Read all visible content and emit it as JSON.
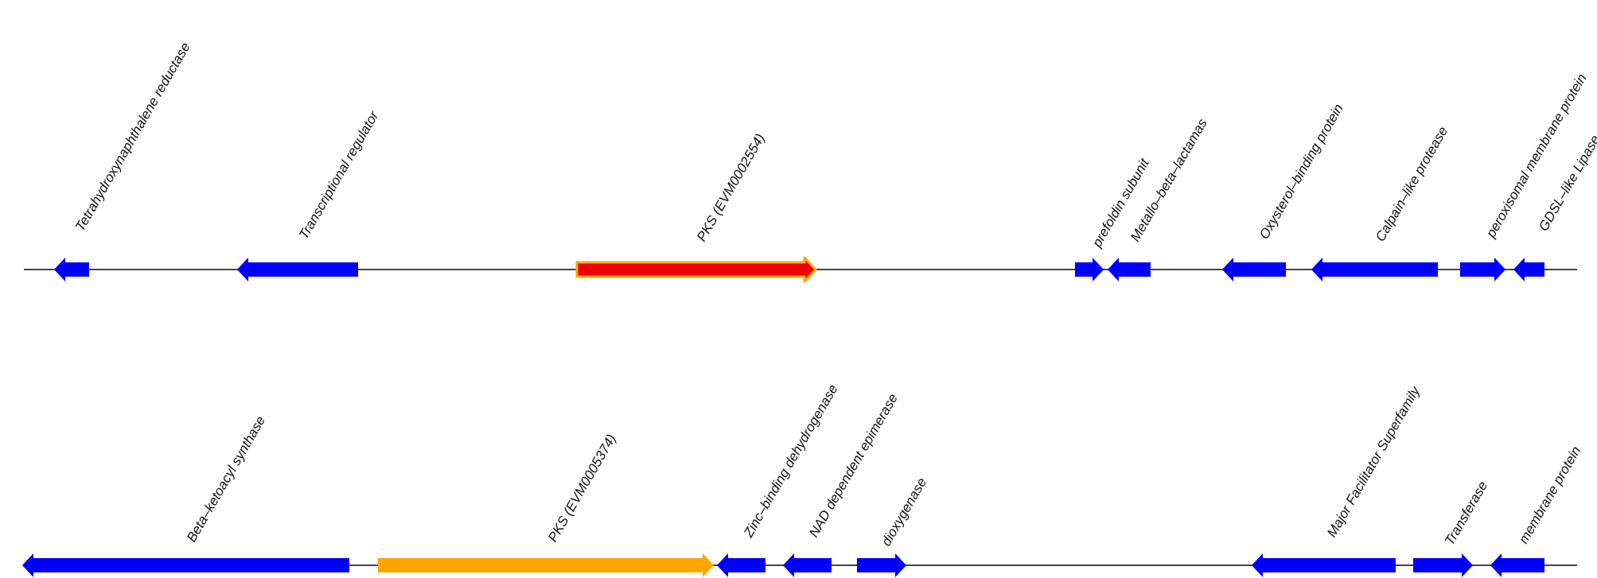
{
  "colors": {
    "backbone": "#444444",
    "gene": "#0000ff",
    "pks_highlight_fill": "#ee0000",
    "pks_highlight_stroke": "#ffaa00",
    "pks_alt": "#ffa500"
  },
  "clusters": [
    {
      "id": "cluster-1",
      "genes": [
        {
          "label": "Tetrahydroxynaphthalene reductase",
          "strand": "-",
          "style": "normal"
        },
        {
          "label": "Transcriptional regulator",
          "strand": "-",
          "style": "normal"
        },
        {
          "label": "PKS (EVM0002554)",
          "strand": "+",
          "style": "highlight"
        },
        {
          "label": "prefoldin subunit",
          "strand": "+",
          "style": "normal"
        },
        {
          "label": "Metallo–beta–lactamas",
          "strand": "-",
          "style": "normal"
        },
        {
          "label": "Oxysterol–binding protein",
          "strand": "-",
          "style": "normal"
        },
        {
          "label": "Calpain–like protease",
          "strand": "-",
          "style": "normal"
        },
        {
          "label": "peroxisomal membrane protein",
          "strand": "+",
          "style": "normal"
        },
        {
          "label": "GDSL–like Lipase",
          "strand": "-",
          "style": "normal"
        }
      ]
    },
    {
      "id": "cluster-2",
      "genes": [
        {
          "label": "Beta–ketoacyl synthase",
          "strand": "-",
          "style": "normal"
        },
        {
          "label": "PKS (EVM0005374)",
          "strand": "+",
          "style": "alt"
        },
        {
          "label": "Zinc–binding dehydrogenase",
          "strand": "-",
          "style": "normal"
        },
        {
          "label": "NAD dependent epimerase",
          "strand": "-",
          "style": "normal"
        },
        {
          "label": "dioxygenase",
          "strand": "+",
          "style": "normal"
        },
        {
          "label": "Major Facilitator Superfamily",
          "strand": "-",
          "style": "normal"
        },
        {
          "label": "Transferase",
          "strand": "+",
          "style": "normal"
        },
        {
          "label": "membrane protein",
          "strand": "-",
          "style": "normal"
        }
      ]
    }
  ]
}
